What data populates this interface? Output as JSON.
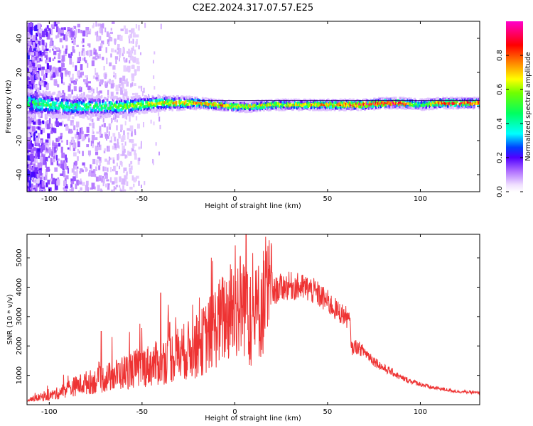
{
  "title": "C2E2.2024.317.07.57.E25",
  "chart_data": [
    {
      "type": "heatmap",
      "xlabel": "Height of straight line (km)",
      "ylabel": "Frequency (Hz)",
      "xlim": [
        -112,
        132
      ],
      "ylim": [
        -50,
        50
      ],
      "x_ticks": [
        -100,
        -50,
        0,
        50,
        100
      ],
      "y_ticks": [
        -40,
        -20,
        0,
        20,
        40
      ],
      "colorbar": {
        "label": "Normalized spectral amplitude",
        "range": [
          0,
          1
        ],
        "ticks": [
          0.0,
          0.2,
          0.4,
          0.6,
          0.8
        ],
        "colormap": [
          "#ffffff",
          "#d9b3ff",
          "#7f00ff",
          "#0000ff",
          "#00ffff",
          "#00ff00",
          "#ffff00",
          "#ff8000",
          "#ff0000",
          "#ff00ff"
        ]
      },
      "ridge": {
        "x": [
          -110,
          -100,
          -90,
          -80,
          -70,
          -60,
          -50,
          -40,
          -30,
          -20,
          -10,
          0,
          10,
          20,
          30,
          40,
          50,
          60,
          70,
          80,
          90,
          100,
          110,
          120,
          130
        ],
        "frequency": [
          2,
          1,
          0,
          0,
          0,
          0,
          1,
          2,
          2,
          2,
          1,
          0,
          0,
          1,
          1,
          1,
          1,
          1,
          1,
          2,
          2,
          1,
          2,
          2,
          2
        ],
        "peak_amplitude": [
          0.5,
          0.5,
          0.45,
          0.5,
          0.55,
          0.6,
          0.65,
          0.7,
          0.75,
          0.8,
          0.85,
          0.7,
          0.7,
          0.7,
          0.7,
          0.75,
          0.8,
          0.85,
          0.95,
          0.95,
          0.95,
          0.5,
          0.9,
          0.9,
          0.9
        ]
      }
    },
    {
      "type": "line",
      "xlabel": "Height of straight line (km)",
      "ylabel": "SNR (10 * v/v)",
      "xlim": [
        -112,
        132
      ],
      "ylim": [
        0,
        5800
      ],
      "x_ticks": [
        -100,
        -50,
        0,
        50,
        100
      ],
      "y_ticks": [
        1000,
        2000,
        3000,
        4000,
        5000
      ],
      "color": "#ee3333",
      "series": [
        {
          "x": [
            -112,
            -105,
            -100,
            -95,
            -90,
            -85,
            -80,
            -75,
            -70,
            -65,
            -60,
            -55,
            -50,
            -45,
            -40,
            -35,
            -30,
            -25,
            -20,
            -15,
            -10,
            -5,
            0,
            5,
            7,
            8,
            10,
            12,
            15,
            20,
            25,
            30,
            35,
            40,
            45,
            50,
            55,
            60,
            62,
            63,
            65,
            70,
            75,
            80,
            85,
            90,
            95,
            100,
            105,
            110,
            115,
            120,
            125,
            132
          ],
          "values": [
            150,
            250,
            300,
            400,
            550,
            650,
            750,
            800,
            900,
            1000,
            1100,
            1200,
            1300,
            1350,
            1450,
            1600,
            1750,
            1850,
            2000,
            2300,
            2700,
            3000,
            3300,
            3500,
            3800,
            2600,
            2900,
            3100,
            3500,
            3800,
            4000,
            4050,
            4000,
            3950,
            3750,
            3500,
            3200,
            3000,
            2800,
            1900,
            2000,
            1800,
            1500,
            1250,
            1100,
            900,
            800,
            700,
            600,
            550,
            500,
            450,
            430,
            400
          ]
        }
      ],
      "peaks": [
        {
          "x": -72,
          "y": 2500
        },
        {
          "x": -40,
          "y": 3800
        },
        {
          "x": -35,
          "y": 2800
        },
        {
          "x": 6,
          "y": 5800
        },
        {
          "x": 20,
          "y": 4500
        }
      ]
    }
  ]
}
